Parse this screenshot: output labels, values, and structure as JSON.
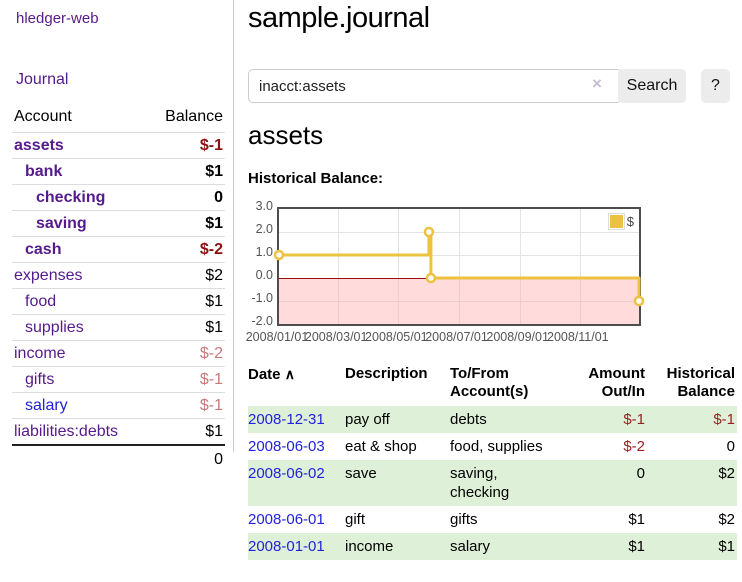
{
  "app": {
    "brand": "hledger-web"
  },
  "sidebar": {
    "nav": {
      "journal": "Journal"
    },
    "table_headers": {
      "account": "Account",
      "balance": "Balance"
    },
    "accounts": [
      {
        "label": "assets",
        "indent": 1,
        "bold": true,
        "link_color": "purple",
        "balance": "$-1",
        "balance_style": "neg-strong"
      },
      {
        "label": "bank",
        "indent": 2,
        "bold": true,
        "link_color": "purple",
        "balance": "$1",
        "balance_style": "strong"
      },
      {
        "label": "checking",
        "indent": 3,
        "bold": true,
        "link_color": "purple",
        "balance": "0",
        "balance_style": "strong"
      },
      {
        "label": "saving",
        "indent": 3,
        "bold": true,
        "link_color": "purple",
        "balance": "$1",
        "balance_style": "strong"
      },
      {
        "label": "cash",
        "indent": 2,
        "bold": true,
        "link_color": "purple",
        "balance": "$-2",
        "balance_style": "neg-strong"
      },
      {
        "label": "expenses",
        "indent": 1,
        "bold": false,
        "link_color": "purple",
        "balance": "$2",
        "balance_style": "plain"
      },
      {
        "label": "food",
        "indent": 2,
        "bold": false,
        "link_color": "purple",
        "balance": "$1",
        "balance_style": "plain"
      },
      {
        "label": "supplies",
        "indent": 2,
        "bold": false,
        "link_color": "purple",
        "balance": "$1",
        "balance_style": "plain"
      },
      {
        "label": "income",
        "indent": 1,
        "bold": false,
        "link_color": "purple",
        "balance": "$-2",
        "balance_style": "neg-soft"
      },
      {
        "label": "gifts",
        "indent": 2,
        "bold": false,
        "link_color": "purple",
        "balance": "$-1",
        "balance_style": "neg-soft"
      },
      {
        "label": "salary",
        "indent": 2,
        "bold": false,
        "link_color": "blue",
        "balance": "$-1",
        "balance_style": "neg-soft"
      },
      {
        "label": "liabilities:debts",
        "indent": 1,
        "bold": false,
        "link_color": "purple",
        "balance": "$1",
        "balance_style": "plain"
      }
    ],
    "total": "0"
  },
  "main": {
    "title": "sample.journal",
    "search": {
      "value": "inacct:assets",
      "clear_icon": "×",
      "button": "Search",
      "help_button": "?"
    },
    "account_heading": "assets",
    "chart_label": "Historical Balance:"
  },
  "chart_data": {
    "type": "line",
    "style": "step-after",
    "title": "Historical Balance:",
    "series": [
      {
        "name": "$",
        "color": "#edc240",
        "points": [
          [
            "2008-01-01",
            1
          ],
          [
            "2008-06-01",
            2
          ],
          [
            "2008-06-03",
            0
          ],
          [
            "2008-12-31",
            -1
          ]
        ]
      }
    ],
    "x_range": [
      "2008-01-01",
      "2008-12-31"
    ],
    "ylim": [
      -2.0,
      3.0
    ],
    "yticks": [
      "3.0",
      "2.0",
      "1.0",
      "0.0",
      "-1.0",
      "-2.0"
    ],
    "xticks": [
      "2008/01/01",
      "2008/03/01",
      "2008/05/01",
      "2008/07/01",
      "2008/09/01",
      "2008/11/01"
    ],
    "legend_position": "top-right",
    "grid": true,
    "negative_region_color": "rgba(255,170,170,0.42)",
    "zero_line_color": "#9c0d0d"
  },
  "register": {
    "headers": {
      "date": "Date",
      "sort_icon": "∧",
      "description": "Description",
      "accounts": "To/From Account(s)",
      "amount": "Amount Out/In",
      "balance": "Historical Balance"
    },
    "rows": [
      {
        "date": "2008-12-31",
        "description": "pay off",
        "accounts": "debts",
        "amount": "$-1",
        "amount_negative": true,
        "balance": "$-1",
        "balance_negative": true
      },
      {
        "date": "2008-06-03",
        "description": "eat & shop",
        "accounts": "food, supplies",
        "amount": "$-2",
        "amount_negative": true,
        "balance": "0",
        "balance_negative": false
      },
      {
        "date": "2008-06-02",
        "description": "save",
        "accounts": "saving, checking",
        "amount": "0",
        "amount_negative": false,
        "balance": "$2",
        "balance_negative": false
      },
      {
        "date": "2008-06-01",
        "description": "gift",
        "accounts": "gifts",
        "amount": "$1",
        "amount_negative": false,
        "balance": "$2",
        "balance_negative": false
      },
      {
        "date": "2008-01-01",
        "description": "income",
        "accounts": "salary",
        "amount": "$1",
        "amount_negative": false,
        "balance": "$1",
        "balance_negative": false
      }
    ]
  }
}
